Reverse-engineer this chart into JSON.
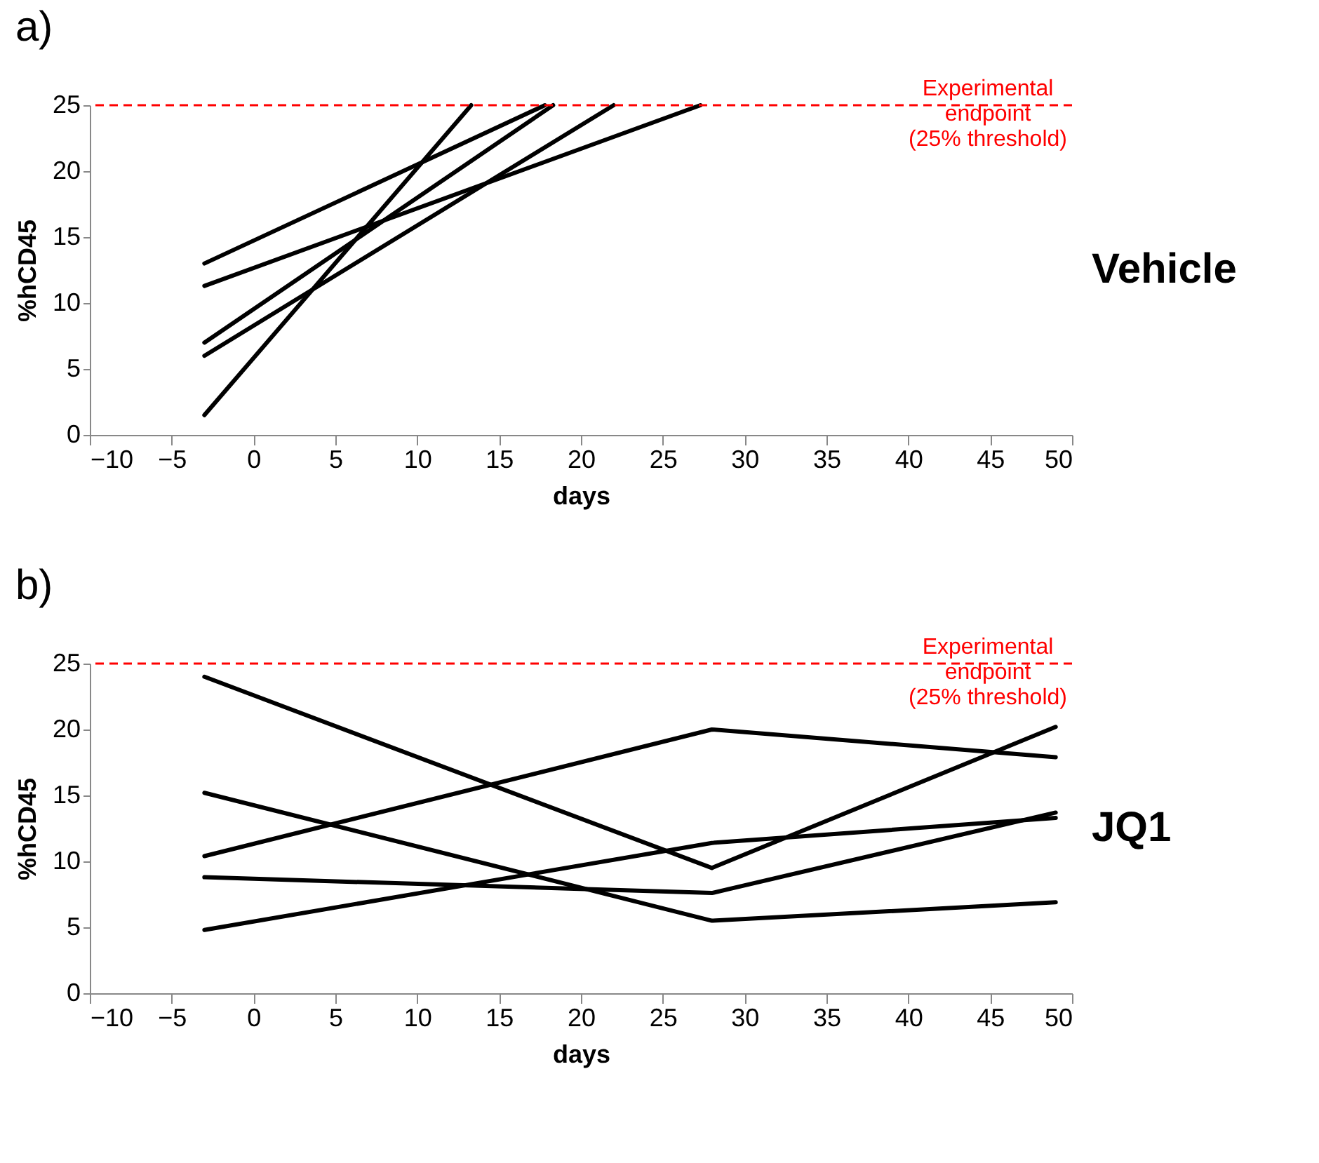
{
  "chart_data": [
    {
      "type": "line",
      "title": "a)",
      "xlabel": "days",
      "ylabel": "%hCD45",
      "annotations": [
        "Vehicle"
      ],
      "series": [
        {
          "color": "#000000",
          "x": [
            -3,
            13.3
          ],
          "values": [
            1.5,
            25
          ]
        },
        {
          "color": "#000000",
          "x": [
            -3,
            17.8
          ],
          "values": [
            13,
            25
          ]
        },
        {
          "color": "#000000",
          "x": [
            -3,
            18.3
          ],
          "values": [
            7,
            25
          ]
        },
        {
          "color": "#000000",
          "x": [
            -3,
            22
          ],
          "values": [
            6,
            25
          ]
        },
        {
          "color": "#000000",
          "x": [
            -3,
            27.3
          ],
          "values": [
            11.3,
            25
          ]
        }
      ],
      "xlim": [
        -10,
        50
      ],
      "xticks": [
        -10,
        -5,
        0,
        5,
        10,
        15,
        20,
        25,
        30,
        35,
        40,
        45,
        50
      ],
      "ylim": [
        0,
        25
      ],
      "yticks": [
        0,
        5,
        10,
        15,
        20,
        25
      ],
      "grid": false,
      "legend": false,
      "line_style": "solid",
      "marker": "none",
      "ref_lines": [
        {
          "axis": "y",
          "value": 25,
          "label": "Experimental\nendpoint\n(25% threshold)",
          "color": "#ff0000",
          "line_style": "dashed"
        }
      ]
    },
    {
      "type": "line",
      "title": "b)",
      "xlabel": "days",
      "ylabel": "%hCD45",
      "annotations": [
        "JQ1"
      ],
      "x": [
        -3,
        28,
        49
      ],
      "series": [
        {
          "color": "#000000",
          "values": [
            24,
            9.5,
            20.2
          ]
        },
        {
          "color": "#000000",
          "values": [
            15.2,
            5.5,
            6.9
          ]
        },
        {
          "color": "#000000",
          "values": [
            10.4,
            20,
            17.9
          ]
        },
        {
          "color": "#000000",
          "values": [
            8.8,
            7.6,
            13.7
          ]
        },
        {
          "color": "#000000",
          "values": [
            4.8,
            11.4,
            13.3
          ]
        }
      ],
      "xlim": [
        -10,
        50
      ],
      "xticks": [
        -10,
        -5,
        0,
        5,
        10,
        15,
        20,
        25,
        30,
        35,
        40,
        45,
        50
      ],
      "ylim": [
        0,
        25
      ],
      "yticks": [
        0,
        5,
        10,
        15,
        20,
        25
      ],
      "grid": false,
      "legend": false,
      "line_style": "solid",
      "marker": "none",
      "ref_lines": [
        {
          "axis": "y",
          "value": 25,
          "label": "Experimental\nendpoint\n(25% threshold)",
          "color": "#ff0000",
          "line_style": "dashed"
        }
      ]
    }
  ]
}
